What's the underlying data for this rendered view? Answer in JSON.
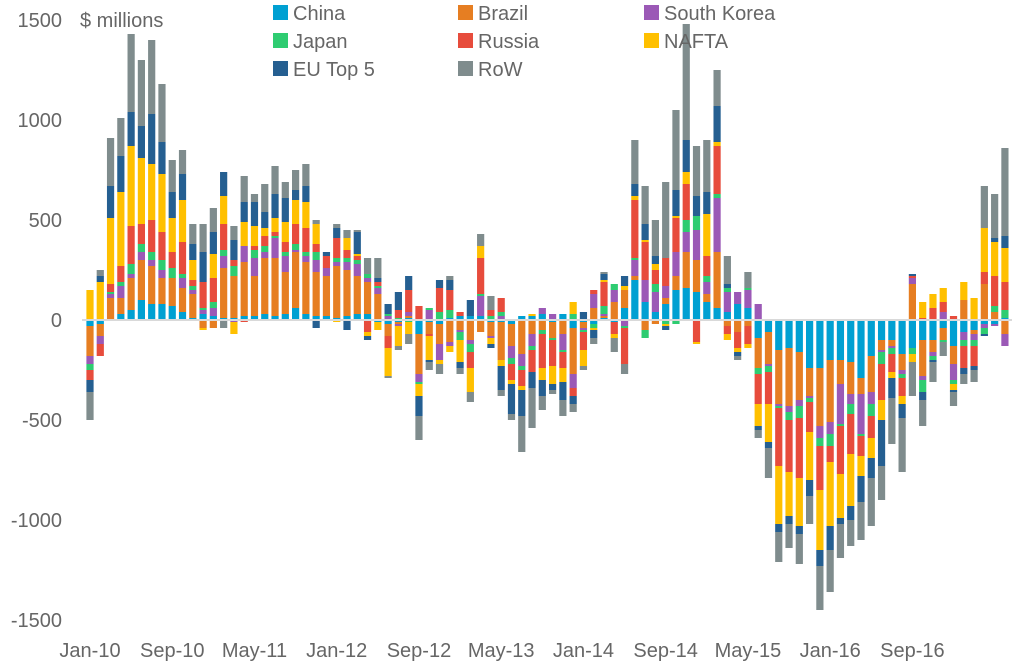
{
  "chart_data": {
    "type": "bar",
    "stacked": true,
    "ylabel": "$ millions",
    "ylim": [
      -1500,
      1500
    ],
    "yticks": [
      1500,
      1000,
      500,
      0,
      -500,
      -1000,
      -1500
    ],
    "x_tick_labels": [
      "Jan-10",
      "Sep-10",
      "May-11",
      "Jan-12",
      "Sep-12",
      "May-13",
      "Jan-14",
      "Sep-14",
      "May-15",
      "Jan-16",
      "Sep-16"
    ],
    "grid": false,
    "legend_position": "top",
    "categories": [
      "Jan-10",
      "Feb-10",
      "Mar-10",
      "Apr-10",
      "May-10",
      "Jun-10",
      "Jul-10",
      "Aug-10",
      "Sep-10",
      "Oct-10",
      "Nov-10",
      "Dec-10",
      "Jan-11",
      "Feb-11",
      "Mar-11",
      "Apr-11",
      "May-11",
      "Jun-11",
      "Jul-11",
      "Aug-11",
      "Sep-11",
      "Oct-11",
      "Nov-11",
      "Dec-11",
      "Jan-12",
      "Feb-12",
      "Mar-12",
      "Apr-12",
      "May-12",
      "Jun-12",
      "Jul-12",
      "Aug-12",
      "Sep-12",
      "Oct-12",
      "Nov-12",
      "Dec-12",
      "Jan-13",
      "Feb-13",
      "Mar-13",
      "Apr-13",
      "May-13",
      "Jun-13",
      "Jul-13",
      "Aug-13",
      "Sep-13",
      "Oct-13",
      "Nov-13",
      "Dec-13",
      "Jan-14",
      "Feb-14",
      "Mar-14",
      "Apr-14",
      "May-14",
      "Jun-14",
      "Jul-14",
      "Aug-14",
      "Sep-14",
      "Oct-14",
      "Nov-14",
      "Dec-14",
      "Jan-15",
      "Feb-15",
      "Mar-15",
      "Apr-15",
      "May-15",
      "Jun-15",
      "Jul-15",
      "Aug-15",
      "Sep-15",
      "Oct-15",
      "Nov-15",
      "Dec-15",
      "Jan-16",
      "Feb-16",
      "Mar-16",
      "Apr-16",
      "May-16",
      "Jun-16",
      "Jul-16",
      "Aug-16",
      "Sep-16",
      "Oct-16",
      "Nov-16",
      "Dec-16",
      "Jan-17",
      "Feb-17",
      "Mar-17",
      "Apr-17",
      "May-17",
      "Jun-17"
    ],
    "series": [
      {
        "name": "China",
        "color": "#00a0d2",
        "values": [
          -30,
          -20,
          0,
          30,
          50,
          100,
          80,
          80,
          70,
          40,
          10,
          30,
          20,
          10,
          10,
          20,
          20,
          30,
          20,
          30,
          60,
          30,
          20,
          20,
          10,
          20,
          30,
          30,
          -10,
          -20,
          -10,
          10,
          -70,
          -10,
          -20,
          10,
          20,
          20,
          20,
          -10,
          -10,
          -20,
          20,
          20,
          30,
          -10,
          30,
          -40,
          -10,
          -20,
          10,
          -10,
          60,
          200,
          90,
          40,
          80,
          150,
          160,
          140,
          90,
          60,
          40,
          80,
          60,
          -90,
          -60,
          -150,
          -140,
          -160,
          -240,
          -240,
          -200,
          -200,
          -210,
          -290,
          -180,
          -100,
          -100,
          -170,
          -140,
          -100,
          -100,
          -40,
          -130,
          -60,
          -50,
          -20,
          -20,
          10
        ]
      },
      {
        "name": "Brazil",
        "color": "#e67e22",
        "values": [
          -150,
          -60,
          110,
          80,
          160,
          200,
          190,
          130,
          140,
          120,
          120,
          -40,
          -40,
          250,
          210,
          270,
          200,
          280,
          290,
          210,
          280,
          260,
          220,
          200,
          260,
          230,
          190,
          160,
          130,
          -60,
          -10,
          10,
          -200,
          -60,
          -100,
          -110,
          -50,
          -100,
          -60,
          -70,
          -190,
          -110,
          -170,
          -70,
          -50,
          -80,
          -70,
          -230,
          -30,
          60,
          10,
          90,
          90,
          20,
          -50,
          -20,
          30,
          70,
          180,
          160,
          40,
          280,
          -30,
          -60,
          -30,
          -150,
          -160,
          -270,
          -290,
          -240,
          -140,
          -290,
          -310,
          -120,
          -160,
          -80,
          -180,
          -50,
          -30,
          -80,
          180,
          -180,
          -60,
          -60,
          -90,
          100,
          -20,
          180,
          40,
          -70
        ]
      },
      {
        "name": "South Korea",
        "color": "#9b59b6",
        "values": [
          -40,
          -40,
          20,
          60,
          20,
          40,
          30,
          40,
          0,
          50,
          20,
          20,
          40,
          60,
          -10,
          80,
          90,
          30,
          100,
          80,
          10,
          30,
          60,
          40,
          20,
          40,
          60,
          20,
          30,
          20,
          -10,
          20,
          -40,
          50,
          -80,
          -20,
          -10,
          -20,
          100,
          -10,
          20,
          -60,
          -60,
          -60,
          30,
          30,
          -80,
          -70,
          -10,
          70,
          10,
          60,
          -30,
          80,
          110,
          100,
          60,
          120,
          100,
          150,
          60,
          270,
          100,
          60,
          90,
          80,
          -10,
          -10,
          -30,
          -30,
          -10,
          -60,
          -60,
          -200,
          -50,
          -200,
          -60,
          -10,
          -10,
          -20,
          30,
          -20,
          -20,
          40,
          -80,
          -40,
          -30,
          -20,
          -10,
          -60
        ]
      },
      {
        "name": "Japan",
        "color": "#2ecc71",
        "values": [
          -30,
          0,
          10,
          20,
          50,
          40,
          40,
          50,
          50,
          20,
          20,
          10,
          30,
          30,
          50,
          0,
          40,
          30,
          10,
          20,
          30,
          20,
          40,
          0,
          20,
          20,
          20,
          20,
          10,
          10,
          10,
          -10,
          -10,
          10,
          40,
          40,
          -40,
          -40,
          10,
          20,
          20,
          -30,
          -20,
          -20,
          -20,
          -10,
          -10,
          30,
          -10,
          -20,
          40,
          30,
          -10,
          10,
          -40,
          40,
          -20,
          -20,
          60,
          70,
          30,
          20,
          20,
          0,
          10,
          -30,
          -30,
          -10,
          -40,
          -60,
          -20,
          -40,
          -60,
          -10,
          -50,
          -10,
          -60,
          -60,
          -30,
          -20,
          -30,
          -60,
          -20,
          -10,
          -20,
          -30,
          -30,
          -30,
          30,
          40
        ]
      },
      {
        "name": "Russia",
        "color": "#e74c3c",
        "values": [
          -50,
          -60,
          40,
          80,
          190,
          100,
          160,
          140,
          80,
          160,
          30,
          130,
          120,
          130,
          30,
          -10,
          20,
          50,
          20,
          50,
          100,
          120,
          40,
          60,
          100,
          40,
          20,
          -60,
          20,
          -60,
          40,
          110,
          70,
          -10,
          120,
          100,
          20,
          -80,
          180,
          30,
          70,
          -80,
          -80,
          -110,
          -170,
          -130,
          -80,
          -40,
          -90,
          20,
          120,
          -60,
          -180,
          290,
          190,
          70,
          140,
          170,
          180,
          -110,
          100,
          240,
          -40,
          -80,
          -90,
          -150,
          -160,
          -290,
          -260,
          -300,
          -150,
          -220,
          -80,
          -240,
          -200,
          -100,
          -110,
          -180,
          -90,
          -90,
          10,
          10,
          60,
          50,
          20,
          -110,
          -100,
          60,
          150,
          140
        ]
      },
      {
        "name": "NAFTA",
        "color": "#ffc000",
        "values": [
          150,
          190,
          330,
          370,
          400,
          330,
          280,
          290,
          170,
          210,
          100,
          -10,
          120,
          140,
          -60,
          120,
          100,
          40,
          70,
          100,
          120,
          130,
          100,
          0,
          -10,
          60,
          10,
          -20,
          -40,
          -140,
          -100,
          -60,
          -60,
          -120,
          -20,
          -30,
          -110,
          -120,
          60,
          -30,
          -30,
          -20,
          -20,
          10,
          -60,
          -90,
          -70,
          60,
          -80,
          -10,
          10,
          -20,
          20,
          20,
          10,
          30,
          -10,
          10,
          60,
          -10,
          210,
          20,
          -30,
          -20,
          -20,
          -110,
          -190,
          -290,
          -220,
          -240,
          -240,
          -300,
          -320,
          -220,
          -260,
          -100,
          -100,
          -100,
          -30,
          -40,
          -40,
          80,
          70,
          70,
          -30,
          90,
          110,
          220,
          170,
          170
        ]
      },
      {
        "name": "EU Top 5",
        "color": "#255f91",
        "values": [
          -60,
          30,
          160,
          180,
          170,
          160,
          250,
          160,
          130,
          130,
          80,
          150,
          110,
          120,
          100,
          100,
          120,
          80,
          120,
          120,
          50,
          80,
          -40,
          20,
          50,
          -50,
          110,
          -20,
          20,
          50,
          90,
          70,
          -100,
          -10,
          40,
          50,
          -30,
          80,
          0,
          -20,
          -120,
          -150,
          -130,
          -80,
          -80,
          -30,
          -90,
          -40,
          40,
          -40,
          30,
          0,
          50,
          60,
          80,
          40,
          -20,
          130,
          160,
          100,
          110,
          180,
          20,
          -20,
          0,
          -20,
          -30,
          -40,
          -40,
          -40,
          -80,
          -80,
          -120,
          -30,
          -70,
          -130,
          -100,
          -230,
          -100,
          -70,
          10,
          -40,
          -10,
          0,
          -10,
          -30,
          -20,
          -10,
          20,
          60
        ]
      },
      {
        "name": "RoW",
        "color": "#7f8c8d",
        "values": [
          -140,
          30,
          240,
          190,
          390,
          330,
          370,
          290,
          160,
          120,
          100,
          140,
          120,
          -40,
          70,
          130,
          40,
          140,
          140,
          80,
          100,
          110,
          20,
          0,
          20,
          40,
          10,
          80,
          100,
          -10,
          -20,
          -50,
          -120,
          -40,
          -50,
          20,
          -30,
          -50,
          60,
          70,
          -30,
          -30,
          -180,
          -200,
          -70,
          -20,
          -80,
          -40,
          -20,
          -30,
          10,
          -70,
          -50,
          220,
          190,
          180,
          380,
          400,
          580,
          250,
          260,
          180,
          140,
          -20,
          80,
          -40,
          -150,
          -150,
          -120,
          -150,
          -140,
          -220,
          -210,
          -170,
          -130,
          -190,
          -240,
          -170,
          -230,
          -270,
          -170,
          -130,
          -100,
          -70,
          -70,
          -50,
          -60,
          210,
          220,
          440
        ]
      }
    ]
  }
}
